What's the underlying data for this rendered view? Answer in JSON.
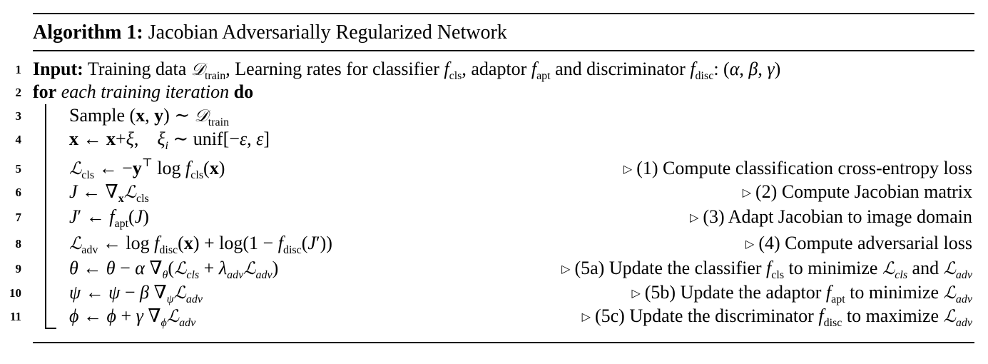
{
  "algorithm": {
    "label": "Algorithm 1:",
    "title": "Jacobian Adversarially Regularized Network"
  },
  "lines": [
    {
      "num": "1",
      "keyword": "Input:",
      "text": "Training data 𝒟train, Learning rates for classifier fcls, adaptor fapt and discriminator fdisc: (α, β, γ)"
    },
    {
      "num": "2",
      "keyword": "for",
      "text": "each training iteration",
      "keyword2": "do"
    },
    {
      "num": "3",
      "text": "Sample (x, y) ∼ 𝒟train"
    },
    {
      "num": "4",
      "text": "x ← x+ξ,    ξi ∼ unif[−ε, ε]"
    },
    {
      "num": "5",
      "text": "ℒcls ← −y⊤ log fcls(x)",
      "comment": "(1) Compute classification cross-entropy loss"
    },
    {
      "num": "6",
      "text": "J ← ∇xℒcls",
      "comment": "(2) Compute Jacobian matrix"
    },
    {
      "num": "7",
      "text": "J′ ← fapt(J)",
      "comment": "(3) Adapt Jacobian to image domain"
    },
    {
      "num": "8",
      "text": "ℒadv ← log fdisc(x) + log(1 − fdisc(J′))",
      "comment": "(4) Compute adversarial loss"
    },
    {
      "num": "9",
      "text": "θ ← θ − α ∇θ(ℒcls + λadvℒadv)",
      "comment": "(5a) Update the classifier fcls to minimize ℒcls and ℒadv"
    },
    {
      "num": "10",
      "text": "ψ ← ψ − β ∇ψℒadv",
      "comment": "(5b) Update the adaptor fapt to minimize ℒadv"
    },
    {
      "num": "11",
      "text": "ϕ ← ϕ + γ ∇ϕℒadv",
      "comment": "(5c) Update the discriminator fdisc to maximize ℒadv"
    }
  ]
}
